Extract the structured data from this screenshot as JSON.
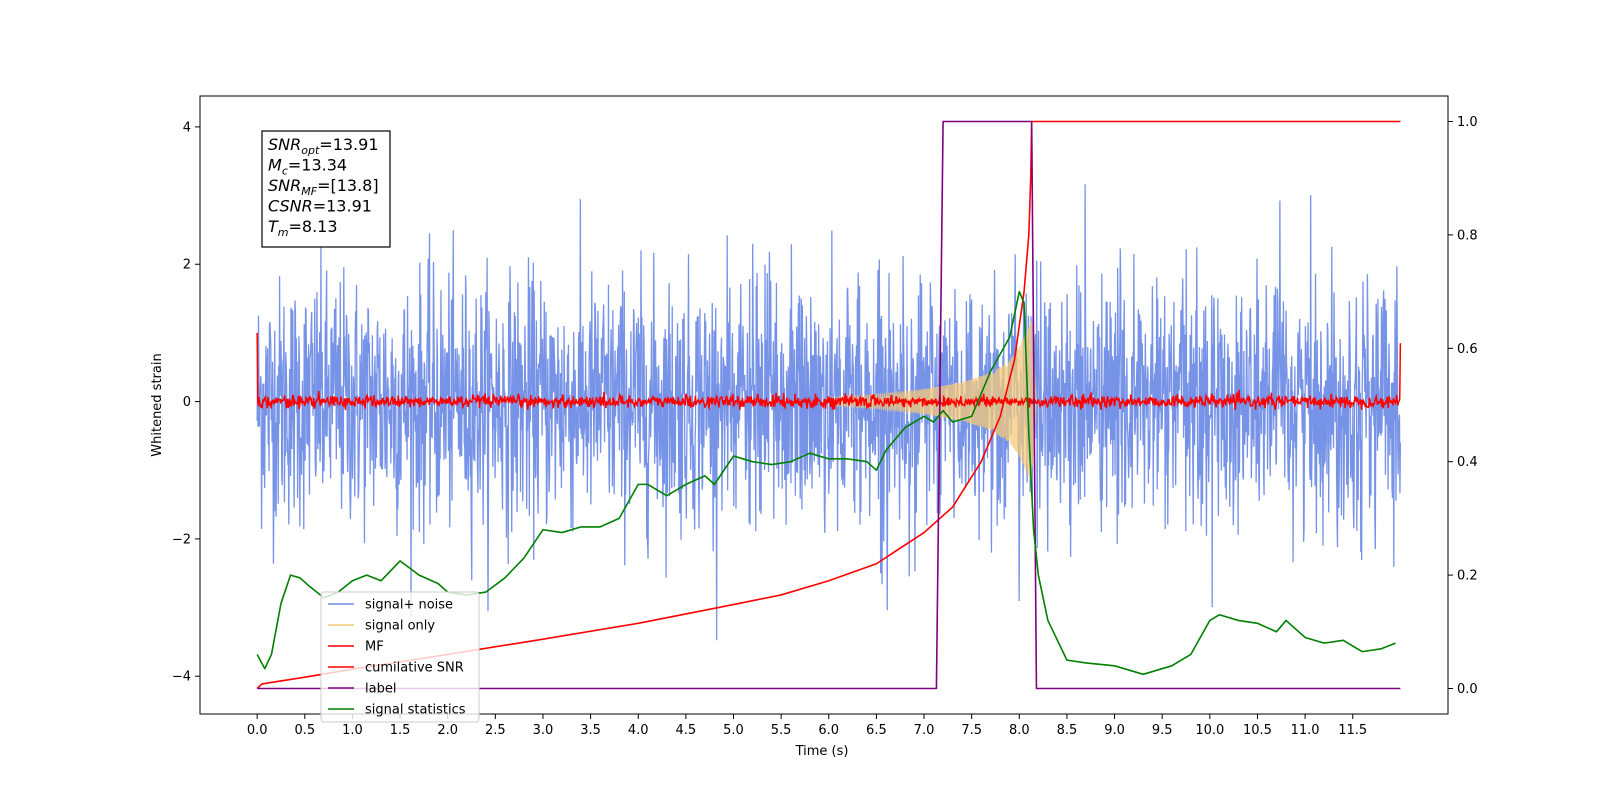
{
  "chart_data": {
    "type": "line",
    "title": "",
    "xlabel": "Time (s)",
    "ylabel": "Whitened strain",
    "y2label": "",
    "xlim": [
      -0.6,
      12.5
    ],
    "ylim": [
      -4.55,
      4.45
    ],
    "y2lim": [
      -0.045,
      1.045
    ],
    "xticks": [
      0.0,
      0.5,
      1.0,
      1.5,
      2.0,
      2.5,
      3.0,
      3.5,
      4.0,
      4.5,
      5.0,
      5.5,
      6.0,
      6.5,
      7.0,
      7.5,
      8.0,
      8.5,
      9.0,
      9.5,
      10.0,
      10.5,
      11.0,
      11.5
    ],
    "xtick_labels": [
      "0.0",
      "0.5",
      "1.0",
      "1.5",
      "2.0",
      "2.5",
      "3.0",
      "3.5",
      "4.0",
      "4.5",
      "5.0",
      "5.5",
      "6.0",
      "6.5",
      "7.0",
      "7.5",
      "8.0",
      "8.5",
      "9.0",
      "9.5",
      "10.0",
      "10.5",
      "11.0",
      "11.5"
    ],
    "yticks": [
      -4,
      -2,
      0,
      2,
      4
    ],
    "ytick_labels": [
      "−4",
      "−2",
      "0",
      "2",
      "4"
    ],
    "y2ticks": [
      0.0,
      0.2,
      0.4,
      0.6,
      0.8,
      1.0
    ],
    "y2tick_labels": [
      "0.0",
      "0.2",
      "0.4",
      "0.6",
      "0.8",
      "1.0"
    ],
    "grid": false,
    "legend_position": "lower-left",
    "annotation": {
      "lines": [
        {
          "base": "SNR",
          "sub": "opt",
          "text": "=13.91"
        },
        {
          "base": "M",
          "sub": "c",
          "text": "=13.34"
        },
        {
          "base": "SNR",
          "sub": "MF",
          "text": "=[13.8]"
        },
        {
          "base": "CSNR",
          "sub": "",
          "text": "=13.91"
        },
        {
          "base": "T",
          "sub": "m",
          "text": "=8.13"
        }
      ]
    },
    "series": [
      {
        "name": "signal+ noise",
        "color": "#6f8de6",
        "axis": "left",
        "kind": "noise",
        "t_start": 0.0,
        "t_end": 12.0,
        "typical_range": [
          -2.0,
          2.0
        ],
        "peak_range": [
          -3.6,
          4.0
        ]
      },
      {
        "name": "signal only",
        "color": "#f5c97a",
        "axis": "left",
        "kind": "chirp",
        "t_start": 6.0,
        "t_end": 8.2,
        "envelope_t": [
          6.0,
          6.5,
          7.0,
          7.4,
          7.7,
          7.9,
          8.0,
          8.1,
          8.13,
          8.18
        ],
        "envelope_a": [
          0.06,
          0.1,
          0.18,
          0.28,
          0.42,
          0.6,
          0.8,
          1.1,
          1.2,
          0.0
        ]
      },
      {
        "name": "MF",
        "color": "#ff0000",
        "axis": "left",
        "kind": "mf_noise",
        "t_start": 0.0,
        "t_end": 12.0,
        "level": 0.0,
        "range": [
          -0.12,
          0.12
        ],
        "start_value": 1.0,
        "end_value": 0.85
      },
      {
        "name": "cumilative SNR",
        "color": "#ff0000",
        "axis": "right",
        "x": [
          0.0,
          0.05,
          0.5,
          1.0,
          2.0,
          3.0,
          4.0,
          5.0,
          5.5,
          6.0,
          6.5,
          7.0,
          7.3,
          7.6,
          7.8,
          7.95,
          8.05,
          8.1,
          8.12,
          8.13,
          12.0
        ],
        "y": [
          0.0,
          0.008,
          0.02,
          0.034,
          0.06,
          0.087,
          0.115,
          0.148,
          0.165,
          0.19,
          0.22,
          0.275,
          0.32,
          0.4,
          0.48,
          0.58,
          0.7,
          0.8,
          0.9,
          1.0,
          1.0
        ]
      },
      {
        "name": "label",
        "color": "#800080",
        "axis": "right",
        "x": [
          0.0,
          7.13,
          7.2,
          8.13,
          8.18,
          12.0
        ],
        "y": [
          0.0,
          0.0,
          1.0,
          1.0,
          0.0,
          0.0
        ]
      },
      {
        "name": "signal statistics",
        "color": "#008000",
        "axis": "right",
        "x": [
          0.0,
          0.08,
          0.15,
          0.25,
          0.35,
          0.45,
          0.55,
          0.7,
          0.85,
          1.0,
          1.15,
          1.3,
          1.5,
          1.7,
          1.9,
          2.0,
          2.2,
          2.4,
          2.6,
          2.8,
          3.0,
          3.2,
          3.4,
          3.6,
          3.8,
          4.0,
          4.1,
          4.3,
          4.5,
          4.7,
          4.8,
          5.0,
          5.2,
          5.4,
          5.6,
          5.8,
          6.0,
          6.2,
          6.4,
          6.5,
          6.6,
          6.8,
          7.0,
          7.1,
          7.2,
          7.3,
          7.5,
          7.7,
          7.9,
          8.0,
          8.05,
          8.1,
          8.15,
          8.2,
          8.3,
          8.5,
          8.7,
          9.0,
          9.3,
          9.6,
          9.8,
          10.0,
          10.1,
          10.3,
          10.5,
          10.7,
          10.8,
          11.0,
          11.2,
          11.4,
          11.6,
          11.8,
          11.95
        ],
        "y": [
          0.06,
          0.035,
          0.06,
          0.15,
          0.2,
          0.195,
          0.18,
          0.16,
          0.17,
          0.19,
          0.2,
          0.19,
          0.225,
          0.2,
          0.185,
          0.17,
          0.165,
          0.17,
          0.195,
          0.23,
          0.28,
          0.275,
          0.285,
          0.285,
          0.3,
          0.36,
          0.36,
          0.34,
          0.36,
          0.375,
          0.36,
          0.41,
          0.4,
          0.395,
          0.4,
          0.415,
          0.405,
          0.405,
          0.4,
          0.385,
          0.42,
          0.46,
          0.48,
          0.47,
          0.49,
          0.47,
          0.48,
          0.56,
          0.62,
          0.7,
          0.68,
          0.45,
          0.28,
          0.2,
          0.12,
          0.05,
          0.045,
          0.04,
          0.025,
          0.04,
          0.06,
          0.12,
          0.13,
          0.12,
          0.115,
          0.1,
          0.12,
          0.09,
          0.08,
          0.085,
          0.065,
          0.07,
          0.08
        ]
      }
    ]
  }
}
